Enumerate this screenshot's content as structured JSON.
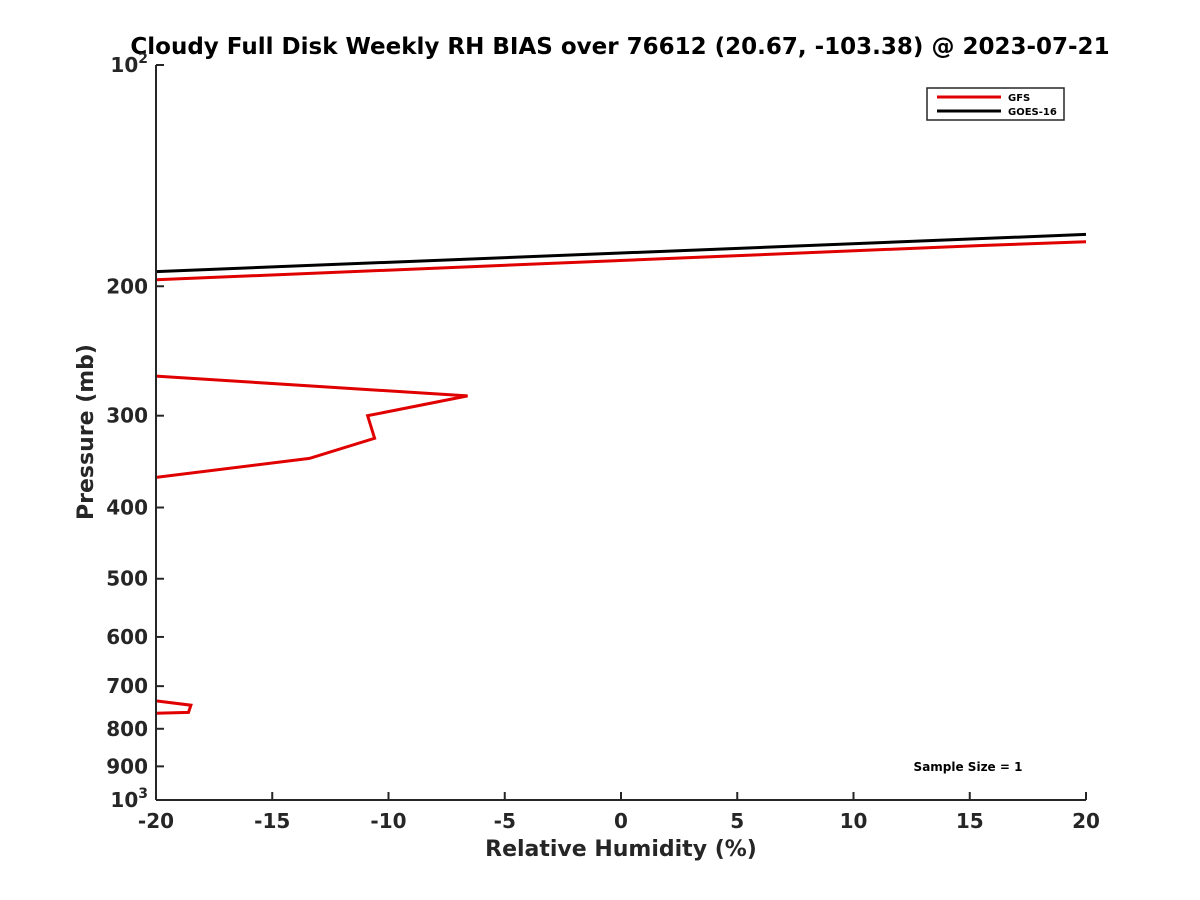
{
  "chart_data": {
    "type": "line",
    "title": "Cloudy Full Disk Weekly RH BIAS over 76612 (20.67, -103.38) @ 2023-07-21",
    "xlabel": "Relative Humidity (%)",
    "ylabel": "Pressure (mb)",
    "xlim": [
      -20,
      20
    ],
    "ylim": [
      100,
      1000
    ],
    "y_scale": "log",
    "y_reversed": true,
    "grid": false,
    "legend_position": "top-right",
    "x_ticks": [
      -20,
      -15,
      -10,
      -5,
      0,
      5,
      10,
      15,
      20
    ],
    "y_ticks": [
      {
        "value": 100,
        "base": "10",
        "exp": "2"
      },
      {
        "value": 200,
        "label": "200"
      },
      {
        "value": 300,
        "label": "300"
      },
      {
        "value": 400,
        "label": "400"
      },
      {
        "value": 500,
        "label": "500"
      },
      {
        "value": 600,
        "label": "600"
      },
      {
        "value": 700,
        "label": "700"
      },
      {
        "value": 800,
        "label": "800"
      },
      {
        "value": 900,
        "label": "900"
      },
      {
        "value": 1000,
        "base": "10",
        "exp": "3"
      }
    ],
    "annotation": "Sample Size = 1",
    "series": [
      {
        "name": "GFS",
        "color": "#e00000",
        "segments": [
          [
            [
              -20,
              196
            ],
            [
              15.5,
              176
            ],
            [
              20,
              174
            ]
          ],
          [
            [
              -20,
              265
            ],
            [
              -6.6,
              282
            ],
            [
              -10.9,
              300
            ],
            [
              -10.6,
              322
            ],
            [
              -13.4,
              343
            ],
            [
              -20,
              364
            ]
          ],
          [
            [
              -20,
              733
            ],
            [
              -18.5,
              743
            ],
            [
              -18.6,
              760
            ],
            [
              -20,
              762
            ]
          ]
        ]
      },
      {
        "name": "GOES-16",
        "color": "#000000",
        "segments": [
          [
            [
              -20,
              191
            ],
            [
              20,
              170
            ]
          ]
        ]
      }
    ]
  }
}
